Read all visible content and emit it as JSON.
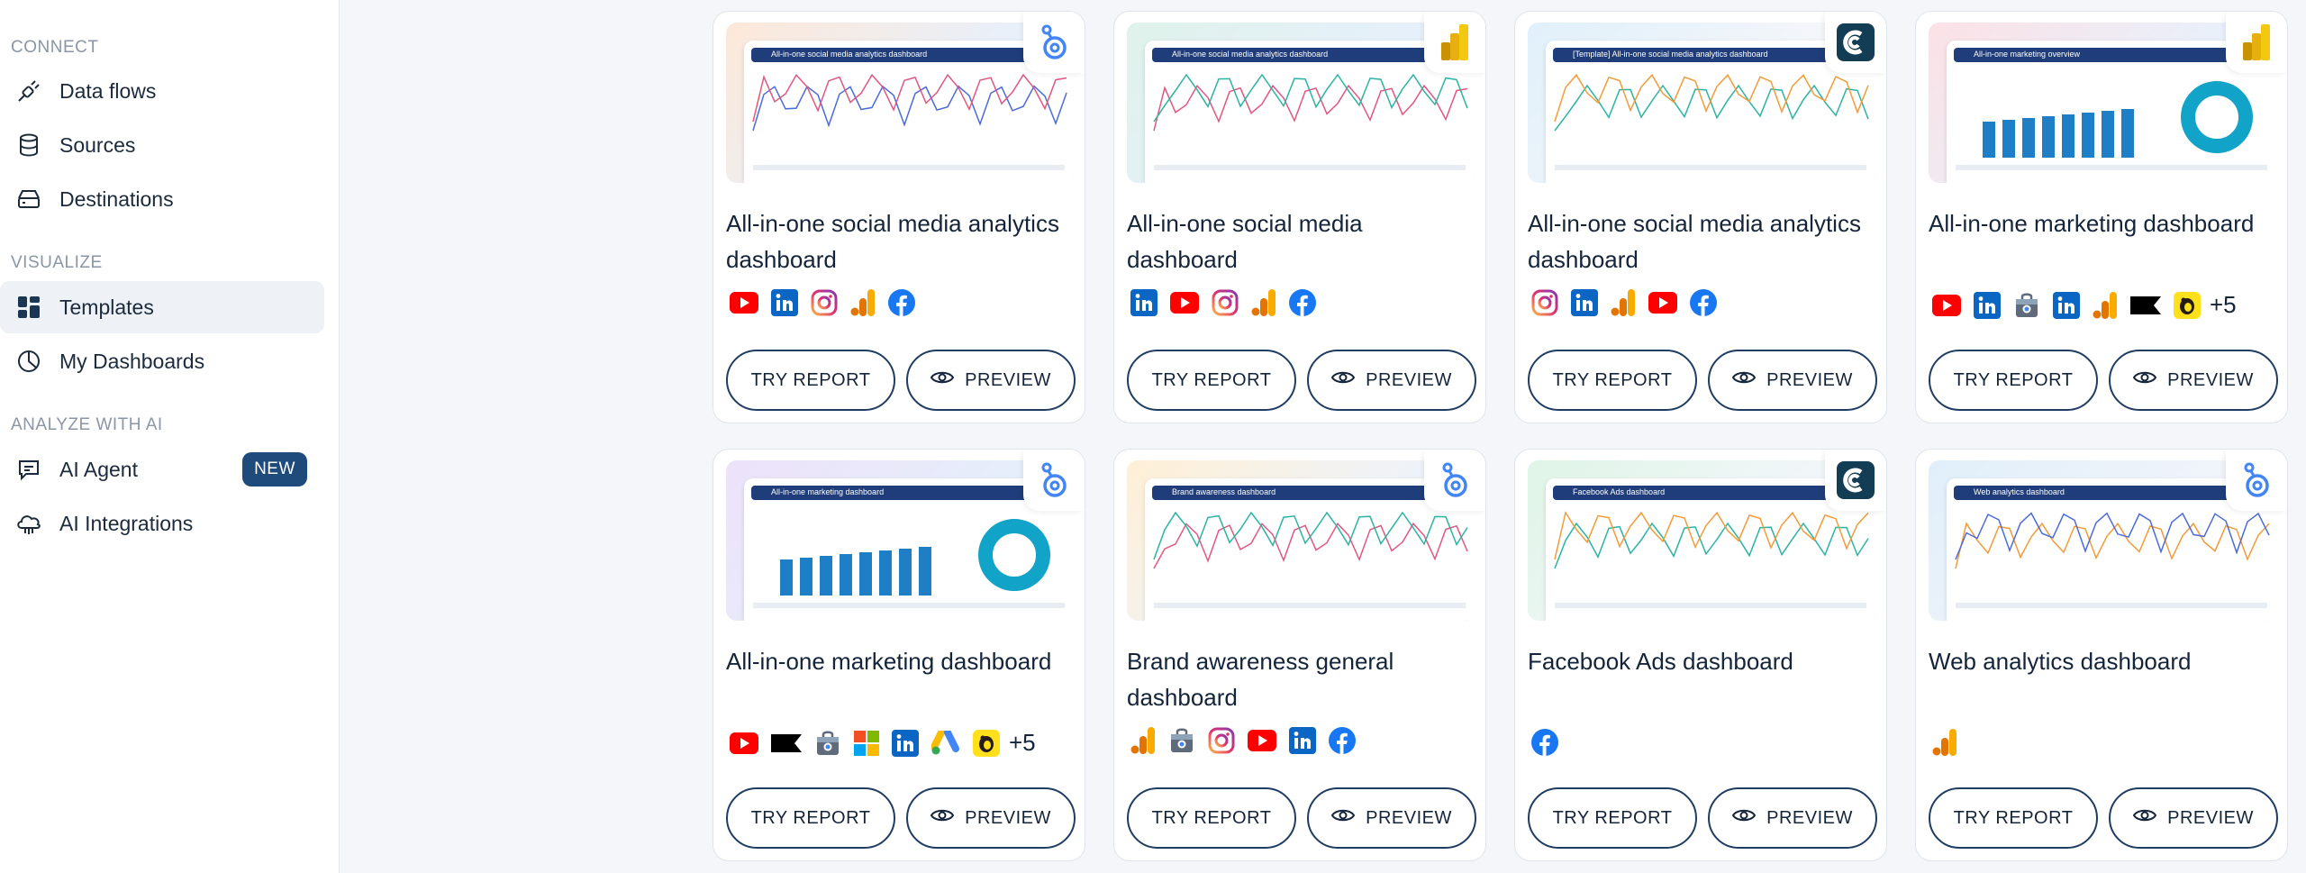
{
  "sidebar": {
    "sections": [
      {
        "label": "CONNECT"
      },
      {
        "label": "VISUALIZE"
      },
      {
        "label": "ANALYZE WITH AI"
      }
    ],
    "items": [
      {
        "label": "Data flows",
        "icon": "plug-icon"
      },
      {
        "label": "Sources",
        "icon": "database-icon"
      },
      {
        "label": "Destinations",
        "icon": "server-icon"
      },
      {
        "label": "Templates",
        "icon": "grid-icon"
      },
      {
        "label": "My Dashboards",
        "icon": "pie-chart-icon"
      },
      {
        "label": "AI Agent",
        "icon": "chat-icon",
        "badge": "NEW"
      },
      {
        "label": "AI Integrations",
        "icon": "cloud-icon"
      }
    ]
  },
  "buttons": {
    "try": "TRY REPORT",
    "preview": "PREVIEW"
  },
  "cards": [
    {
      "title": "All-in-one social media analytics dashboard",
      "tool": "looker-studio-icon",
      "thumb_title": "All-in-one social media analytics dashboard",
      "sources": [
        "youtube-icon",
        "linkedin-icon",
        "instagram-icon",
        "google-analytics-icon",
        "facebook-icon"
      ],
      "more": ""
    },
    {
      "title": "All-in-one social media dashboard",
      "tool": "power-bi-icon",
      "thumb_title": "All-in-one social media analytics dashboard",
      "sources": [
        "linkedin-icon",
        "youtube-icon",
        "instagram-icon",
        "google-analytics-icon",
        "facebook-icon"
      ],
      "more": ""
    },
    {
      "title": "All-in-one social media analytics dashboard",
      "tool": "coupler-icon",
      "thumb_title": "[Template] All-in-one social media analytics dashboard",
      "sources": [
        "instagram-icon",
        "linkedin-icon",
        "google-analytics-icon",
        "youtube-icon",
        "facebook-icon"
      ],
      "more": ""
    },
    {
      "title": "All-in-one marketing dashboard",
      "tool": "power-bi-icon",
      "thumb_title": "All-in-one marketing overview",
      "sources": [
        "youtube-icon",
        "linkedin-icon",
        "bag-icon",
        "linkedin-icon",
        "google-analytics-icon",
        "flag-icon",
        "mailchimp-icon"
      ],
      "more": "+5"
    },
    {
      "title": "All-in-one marketing dashboard",
      "tool": "looker-studio-icon",
      "thumb_title": "All-in-one marketing dashboard",
      "sources": [
        "youtube-icon",
        "flag-icon",
        "bag-icon",
        "microsoft-icon",
        "linkedin-icon",
        "google-ads-icon",
        "mailchimp-icon"
      ],
      "more": "+5"
    },
    {
      "title": "Brand awareness general dashboard",
      "tool": "looker-studio-icon",
      "thumb_title": "Brand awareness dashboard",
      "sources": [
        "google-analytics-icon",
        "bag-icon",
        "instagram-icon",
        "youtube-icon",
        "linkedin-icon",
        "facebook-icon"
      ],
      "more": ""
    },
    {
      "title": "Facebook Ads dashboard",
      "tool": "coupler-icon",
      "thumb_title": "Facebook Ads dashboard",
      "sources": [
        "facebook-icon"
      ],
      "more": ""
    },
    {
      "title": "Web analytics dashboard",
      "tool": "looker-studio-icon",
      "thumb_title": "Web analytics dashboard",
      "sources": [
        "google-analytics-icon"
      ],
      "more": ""
    }
  ],
  "colors": {
    "accent": "#1f4a7c",
    "youtube": "#ff0000",
    "linkedin": "#0a66c2",
    "facebook": "#1877f2",
    "ga": "#f9ab00",
    "coupler": "#133c55"
  }
}
